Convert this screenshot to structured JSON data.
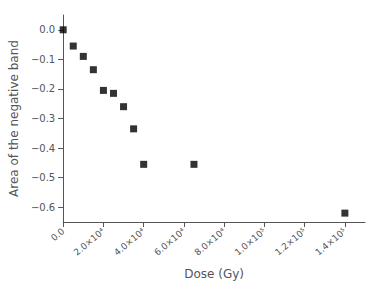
{
  "chart_data": {
    "type": "scatter",
    "x": [
      0,
      5000,
      10000,
      15000,
      20000,
      25000,
      30000,
      35000,
      40000,
      65000,
      140000
    ],
    "y": [
      0.0,
      -0.055,
      -0.09,
      -0.135,
      -0.205,
      -0.215,
      -0.26,
      -0.335,
      -0.455,
      -0.455,
      -0.62
    ],
    "xlabel": "Dose (Gy)",
    "ylabel": "Area of the negative band",
    "xlim": [
      0,
      150000
    ],
    "ylim": [
      -0.65,
      0.05
    ],
    "xticks": [
      {
        "value": 0,
        "label": "0.0"
      },
      {
        "value": 20000,
        "label": "2.0×10⁴"
      },
      {
        "value": 40000,
        "label": "4.0×10⁴"
      },
      {
        "value": 60000,
        "label": "6.0×10⁴"
      },
      {
        "value": 80000,
        "label": "8.0×10⁴"
      },
      {
        "value": 100000,
        "label": "1.0×10⁵"
      },
      {
        "value": 120000,
        "label": "1.2×10⁵"
      },
      {
        "value": 140000,
        "label": "1.4×10⁵"
      }
    ],
    "yticks": [
      {
        "value": -0.6,
        "label": "−0.6"
      },
      {
        "value": -0.5,
        "label": "−0.5"
      },
      {
        "value": -0.4,
        "label": "−0.4"
      },
      {
        "value": -0.3,
        "label": "−0.3"
      },
      {
        "value": -0.2,
        "label": "−0.2"
      },
      {
        "value": -0.1,
        "label": "−0.1"
      },
      {
        "value": 0.0,
        "label": "0.0"
      }
    ],
    "color": "black",
    "marker": "square",
    "grid": false
  }
}
